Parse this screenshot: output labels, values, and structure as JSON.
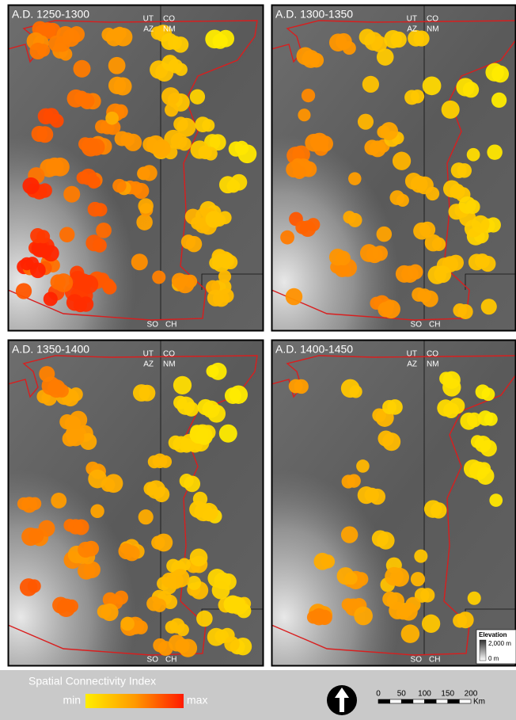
{
  "panels": [
    {
      "title": "A.D. 1250-1300",
      "labels": {
        "ut": "UT",
        "co": "CO",
        "az": "AZ",
        "nm": "NM",
        "so": "SO",
        "ch": "CH"
      }
    },
    {
      "title": "A.D. 1300-1350",
      "labels": {
        "ut": "UT",
        "co": "CO",
        "az": "AZ",
        "nm": "NM",
        "so": "SO",
        "ch": "CH"
      }
    },
    {
      "title": "A.D. 1350-1400",
      "labels": {
        "ut": "UT",
        "co": "CO",
        "az": "AZ",
        "nm": "NM",
        "so": "SO",
        "ch": "CH"
      }
    },
    {
      "title": "A.D. 1400-1450",
      "labels": {
        "ut": "UT",
        "co": "CO",
        "az": "AZ",
        "nm": "NM",
        "so": "SO",
        "ch": "CH"
      }
    }
  ],
  "elevation_legend": {
    "title": "Elevation",
    "high": "2,000 m",
    "low": "0 m"
  },
  "legend": {
    "title": "Spatial Connectivity Index",
    "min": "min",
    "max": "max"
  },
  "scale_bar": {
    "ticks": [
      "0",
      "50",
      "100",
      "150",
      "200"
    ],
    "unit": "Km"
  }
}
